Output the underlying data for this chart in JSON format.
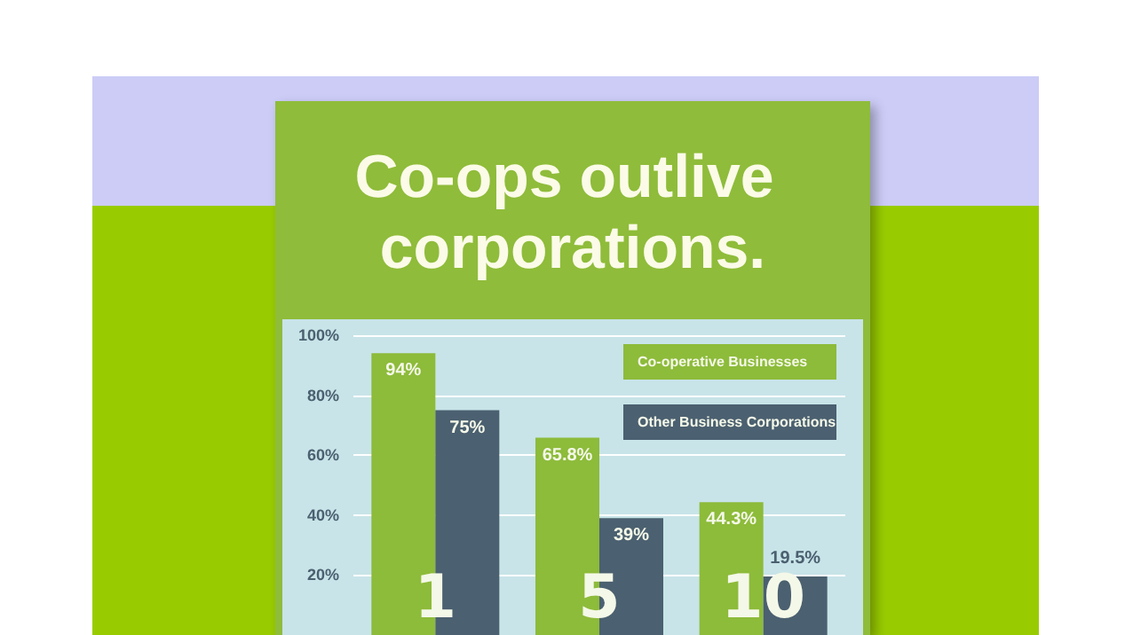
{
  "chart_data": {
    "type": "bar",
    "title": "Co-ops outlive corporations.",
    "categories": [
      "1",
      "5",
      "10"
    ],
    "series": [
      {
        "name": "Co-operative Businesses",
        "color": "#8dbb3a",
        "values": [
          94,
          65.8,
          44.3
        ],
        "value_labels": [
          "94%",
          "65.8%",
          "44.3%"
        ]
      },
      {
        "name": "Other Business Corporations",
        "color": "#4b6070",
        "values": [
          75,
          39,
          19.5
        ],
        "value_labels": [
          "75%",
          "39%",
          "19.5%"
        ]
      }
    ],
    "ylim": [
      0,
      100
    ],
    "yticks": [
      {
        "value": 0,
        "label": null
      },
      {
        "value": 20,
        "label": "20%"
      },
      {
        "value": 40,
        "label": "40%"
      },
      {
        "value": 60,
        "label": "60%"
      },
      {
        "value": 80,
        "label": "80%"
      },
      {
        "value": 100,
        "label": "100%"
      }
    ],
    "grid": "y",
    "legend": "top right"
  }
}
